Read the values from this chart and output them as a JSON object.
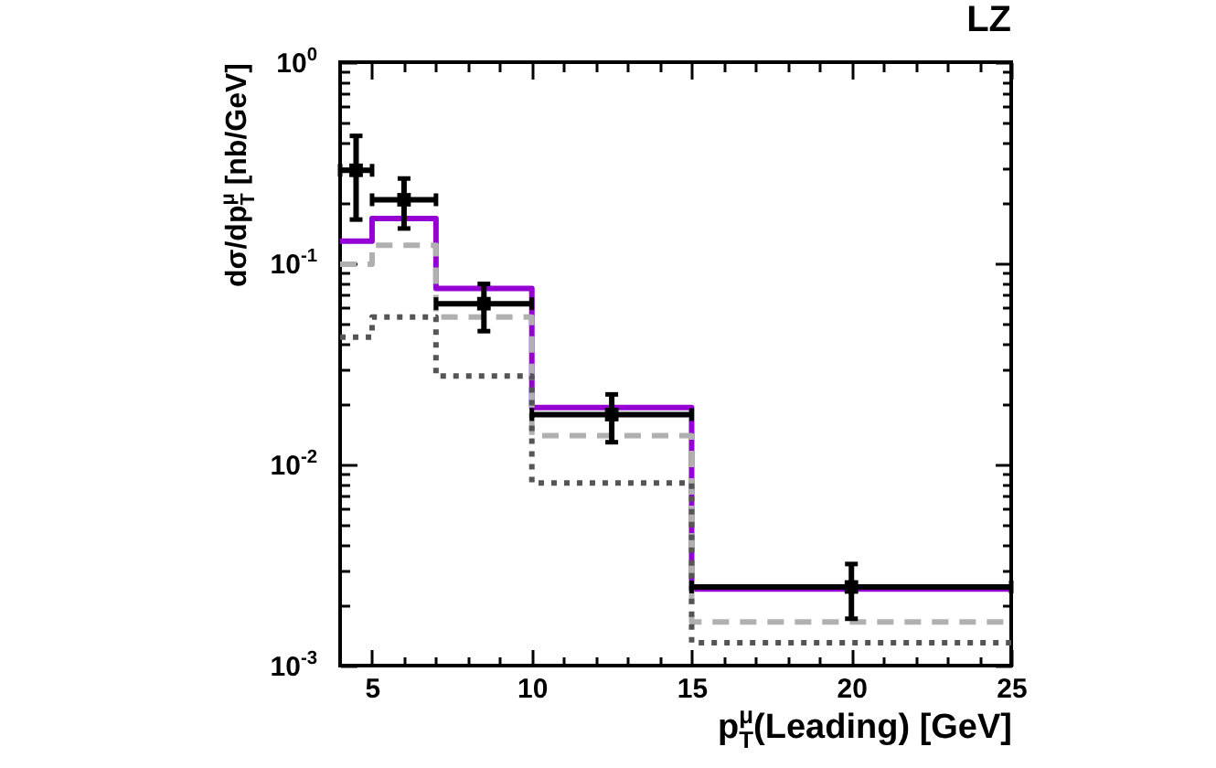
{
  "chart_data": {
    "type": "histogram",
    "title": "LZ",
    "xlabel": "p$^{μ}$$_{T}$(Leading) [GeV]",
    "ylabel": "dσ/dp$^{μ}$$_{T}$ [nb/GeV]",
    "bins": [
      4,
      5,
      7,
      10,
      15,
      25
    ],
    "series": [
      {
        "color": "#9400d3",
        "line_style": "solid",
        "values": [
          0.129,
          0.167,
          0.075,
          0.0192,
          0.0024
        ]
      },
      {
        "color": "#b0b0b0",
        "line_style": "dashed",
        "values": [
          0.099,
          0.123,
          0.054,
          0.0139,
          0.00165
        ]
      },
      {
        "color": "#555555",
        "line_style": "dotted",
        "values": [
          0.043,
          0.054,
          0.0275,
          0.0081,
          0.0013
        ]
      },
      {
        "type": "scatter",
        "color": "#000000",
        "marker": "square",
        "x": [
          4.5,
          6,
          8.5,
          12.5,
          20
        ],
        "values": [
          0.29,
          0.207,
          0.063,
          0.0177,
          0.00246
        ],
        "errors": [
          [
            0.165,
            0.43
          ],
          [
            0.149,
            0.264
          ],
          [
            0.046,
            0.079
          ],
          [
            0.0129,
            0.0223
          ],
          [
            0.00171,
            0.0032
          ]
        ],
        "xerrors": [
          [
            4,
            5
          ],
          [
            5,
            7
          ],
          [
            7,
            10
          ],
          [
            10,
            15
          ],
          [
            15,
            25
          ]
        ]
      }
    ],
    "xlim": [
      4,
      25
    ],
    "ylim": [
      0.001,
      1
    ],
    "log": "y",
    "xticks": [
      5,
      {
        "value": 6,
        "label": null
      },
      {
        "value": 7,
        "label": null
      },
      {
        "value": 8,
        "label": null
      },
      {
        "value": 9,
        "label": null
      },
      10,
      {
        "value": 11,
        "label": null
      },
      {
        "value": 12,
        "label": null
      },
      {
        "value": 13,
        "label": null
      },
      {
        "value": 14,
        "label": null
      },
      15,
      {
        "value": 16,
        "label": null
      },
      {
        "value": 17,
        "label": null
      },
      {
        "value": 18,
        "label": null
      },
      {
        "value": 19,
        "label": null
      },
      20,
      {
        "value": 21,
        "label": null
      },
      {
        "value": 22,
        "label": null
      },
      {
        "value": 23,
        "label": null
      },
      {
        "value": 24,
        "label": null
      },
      25
    ],
    "yticks": [
      {
        "value": 0.001,
        "label": "10$^{-3}$"
      },
      {
        "value": 0.002,
        "label": null
      },
      {
        "value": 0.003,
        "label": null
      },
      {
        "value": 0.004,
        "label": null
      },
      {
        "value": 0.005,
        "label": null
      },
      {
        "value": 0.006,
        "label": null
      },
      {
        "value": 0.007,
        "label": null
      },
      {
        "value": 0.008,
        "label": null
      },
      {
        "value": 0.009,
        "label": null
      },
      {
        "value": 0.01,
        "label": "10$^{-2}$"
      },
      {
        "value": 0.02,
        "label": null
      },
      {
        "value": 0.03,
        "label": null
      },
      {
        "value": 0.04,
        "label": null
      },
      {
        "value": 0.05,
        "label": null
      },
      {
        "value": 0.06,
        "label": null
      },
      {
        "value": 0.07,
        "label": null
      },
      {
        "value": 0.08,
        "label": null
      },
      {
        "value": 0.09,
        "label": null
      },
      {
        "value": 0.1,
        "label": "10$^{-1}$"
      },
      {
        "value": 0.2,
        "label": null
      },
      {
        "value": 0.3,
        "label": null
      },
      {
        "value": 0.4,
        "label": null
      },
      {
        "value": 0.5,
        "label": null
      },
      {
        "value": 0.6,
        "label": null
      },
      {
        "value": 0.7,
        "label": null
      },
      {
        "value": 0.8,
        "label": null
      },
      {
        "value": 0.9,
        "label": null
      },
      {
        "value": 1,
        "label": "10$^{0}$"
      }
    ]
  }
}
